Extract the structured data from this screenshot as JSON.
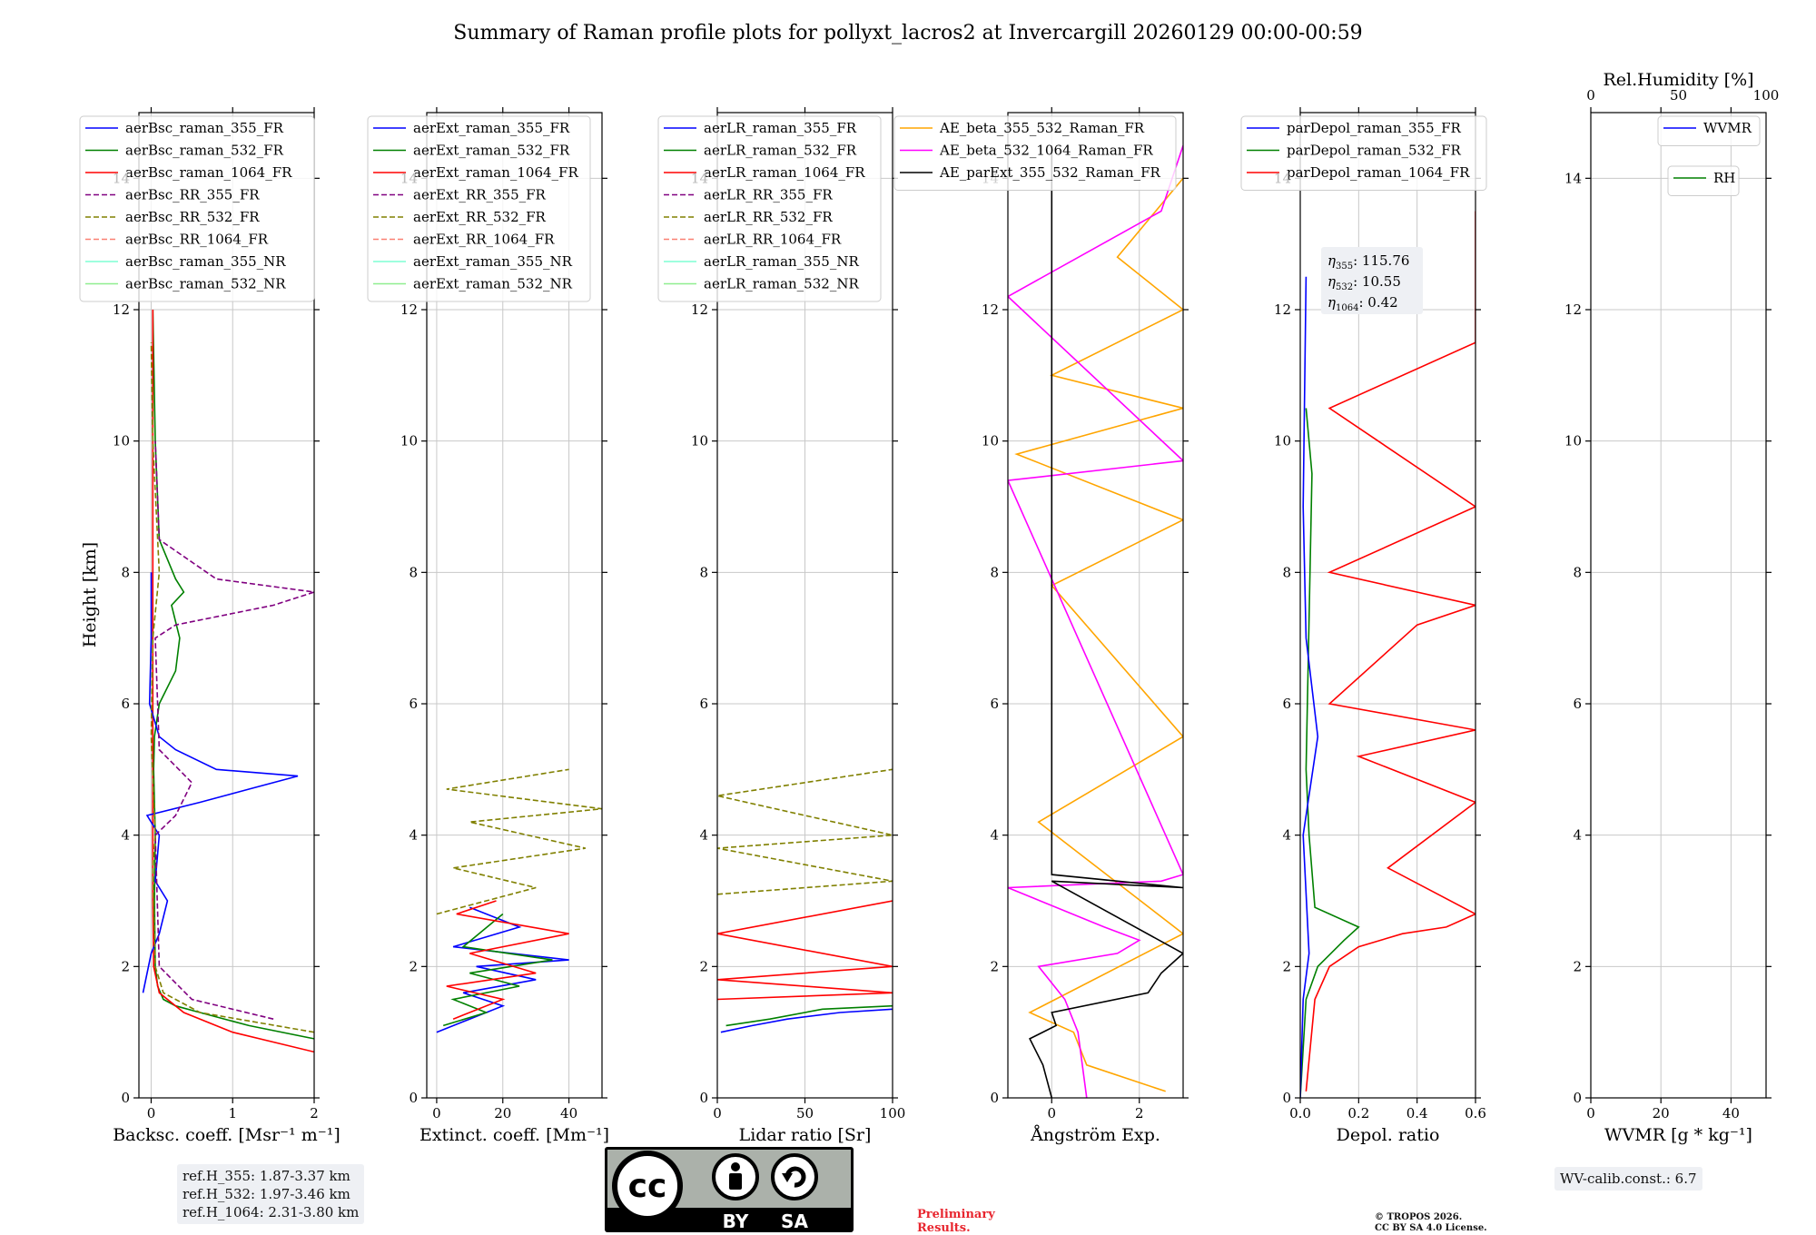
{
  "title": "Summary of Raman profile plots for pollyxt_lacros2 at Invercargill 20260129 00:00-00:59",
  "ylabel": "Height [km]",
  "yticks": [
    "0",
    "2",
    "4",
    "6",
    "8",
    "10",
    "12",
    "14"
  ],
  "y_hidden_tick": "14",
  "panels": [
    {
      "id": "bsc",
      "xlabel": "Backsc. coeff. [Msr⁻¹ m⁻¹]",
      "xlim": [
        -0.15,
        2.0
      ],
      "xticks": [
        {
          "v": 0,
          "t": "0"
        },
        {
          "v": 1,
          "t": "1"
        },
        {
          "v": 2,
          "t": "2"
        }
      ],
      "legend": [
        {
          "label": "aerBsc_raman_355_FR",
          "color": "#0000ff",
          "dash": "none"
        },
        {
          "label": "aerBsc_raman_532_FR",
          "color": "#008000",
          "dash": "none"
        },
        {
          "label": "aerBsc_raman_1064_FR",
          "color": "#ff0000",
          "dash": "none"
        },
        {
          "label": "aerBsc_RR_355_FR",
          "color": "#800080",
          "dash": "6,3"
        },
        {
          "label": "aerBsc_RR_532_FR",
          "color": "#808000",
          "dash": "6,3"
        },
        {
          "label": "aerBsc_RR_1064_FR",
          "color": "#fa8072",
          "dash": "6,3"
        },
        {
          "label": "aerBsc_raman_355_NR",
          "color": "#7fffd4",
          "dash": "none"
        },
        {
          "label": "aerBsc_raman_532_NR",
          "color": "#90ee90",
          "dash": "none"
        }
      ]
    },
    {
      "id": "ext",
      "xlabel": "Extinct. coeff. [Mm⁻¹]",
      "xlim": [
        -3,
        50
      ],
      "xticks": [
        {
          "v": 0,
          "t": "0"
        },
        {
          "v": 20,
          "t": "20"
        },
        {
          "v": 40,
          "t": "40"
        }
      ],
      "legend": [
        {
          "label": "aerExt_raman_355_FR",
          "color": "#0000ff",
          "dash": "none"
        },
        {
          "label": "aerExt_raman_532_FR",
          "color": "#008000",
          "dash": "none"
        },
        {
          "label": "aerExt_raman_1064_FR",
          "color": "#ff0000",
          "dash": "none"
        },
        {
          "label": "aerExt_RR_355_FR",
          "color": "#800080",
          "dash": "6,3"
        },
        {
          "label": "aerExt_RR_532_FR",
          "color": "#808000",
          "dash": "6,3"
        },
        {
          "label": "aerExt_RR_1064_FR",
          "color": "#fa8072",
          "dash": "6,3"
        },
        {
          "label": "aerExt_raman_355_NR",
          "color": "#7fffd4",
          "dash": "none"
        },
        {
          "label": "aerExt_raman_532_NR",
          "color": "#90ee90",
          "dash": "none"
        }
      ]
    },
    {
      "id": "lr",
      "xlabel": "Lidar ratio [Sr]",
      "xlim": [
        0,
        100
      ],
      "xticks": [
        {
          "v": 0,
          "t": "0"
        },
        {
          "v": 50,
          "t": "50"
        },
        {
          "v": 100,
          "t": "100"
        }
      ],
      "legend": [
        {
          "label": "aerLR_raman_355_FR",
          "color": "#0000ff",
          "dash": "none"
        },
        {
          "label": "aerLR_raman_532_FR",
          "color": "#008000",
          "dash": "none"
        },
        {
          "label": "aerLR_raman_1064_FR",
          "color": "#ff0000",
          "dash": "none"
        },
        {
          "label": "aerLR_RR_355_FR",
          "color": "#800080",
          "dash": "6,3"
        },
        {
          "label": "aerLR_RR_532_FR",
          "color": "#808000",
          "dash": "6,3"
        },
        {
          "label": "aerLR_RR_1064_FR",
          "color": "#fa8072",
          "dash": "6,3"
        },
        {
          "label": "aerLR_raman_355_NR",
          "color": "#7fffd4",
          "dash": "none"
        },
        {
          "label": "aerLR_raman_532_NR",
          "color": "#90ee90",
          "dash": "none"
        }
      ]
    },
    {
      "id": "ae",
      "xlabel": "Ångström Exp.",
      "xlim": [
        -1,
        3
      ],
      "xticks": [
        {
          "v": 0,
          "t": "0"
        },
        {
          "v": 2,
          "t": "2"
        }
      ],
      "legend": [
        {
          "label": "AE_beta_355_532_Raman_FR",
          "color": "#ffa500",
          "dash": "none"
        },
        {
          "label": "AE_beta_532_1064_Raman_FR",
          "color": "#ff00ff",
          "dash": "none"
        },
        {
          "label": "AE_parExt_355_532_Raman_FR",
          "color": "#000000",
          "dash": "none"
        }
      ]
    },
    {
      "id": "dep",
      "xlabel": "Depol. ratio",
      "xlim": [
        0,
        0.6
      ],
      "xticks": [
        {
          "v": 0,
          "t": "0.0"
        },
        {
          "v": 0.2,
          "t": "0.2"
        },
        {
          "v": 0.4,
          "t": "0.4"
        },
        {
          "v": 0.6,
          "t": "0.6"
        }
      ],
      "legend": [
        {
          "label": "parDepol_raman_355_FR",
          "color": "#0000ff",
          "dash": "none"
        },
        {
          "label": "parDepol_raman_532_FR",
          "color": "#008000",
          "dash": "none"
        },
        {
          "label": "parDepol_raman_1064_FR",
          "color": "#ff0000",
          "dash": "none"
        }
      ],
      "eta": [
        {
          "sub": "355",
          "value": "115.76"
        },
        {
          "sub": "532",
          "value": "10.55"
        },
        {
          "sub": "1064",
          "value": "0.42"
        }
      ]
    },
    {
      "id": "wv",
      "xlabel": "WVMR [g * kg⁻¹]",
      "xlim": [
        0,
        50
      ],
      "xticks": [
        {
          "v": 0,
          "t": "0"
        },
        {
          "v": 20,
          "t": "20"
        },
        {
          "v": 40,
          "t": "40"
        }
      ],
      "toplabel": "Rel.Humidity [%]",
      "topticks": [
        {
          "v": 0,
          "t": "0"
        },
        {
          "v": 25,
          "t": "50"
        },
        {
          "v": 50,
          "t": "100"
        }
      ],
      "legend": [
        {
          "label": "WVMR",
          "color": "#0000ff",
          "dash": "none"
        }
      ],
      "legend2": [
        {
          "label": "RH",
          "color": "#008000",
          "dash": "none"
        }
      ]
    }
  ],
  "info": {
    "ref_h": [
      "ref.H_355: 1.87-3.37 km",
      "ref.H_532: 1.97-3.46 km",
      "ref.H_1064: 2.31-3.80 km"
    ],
    "wv_calib": "WV-calib.const.: 6.7",
    "preliminary": [
      "Preliminary",
      "Results."
    ],
    "copyright": [
      "© TROPOS 2026.",
      "CC BY SA 4.0 License."
    ],
    "cc_labels": [
      "BY",
      "SA"
    ],
    "cc_text": "cc"
  },
  "colors": {
    "blue": "#0000ff",
    "green": "#008000",
    "red": "#ff0000",
    "purple": "#800080",
    "olive": "#808000",
    "salmon": "#fa8072",
    "aqua": "#7fffd4",
    "lightgreen": "#90ee90",
    "orange": "#ffa500",
    "magenta": "#ff00ff",
    "black": "#000000"
  },
  "chart_data": [
    {
      "type": "line",
      "panel": "bsc",
      "title": "",
      "xlabel": "Backsc. coeff. [Msr⁻¹ m⁻¹]",
      "ylabel": "Height [km]",
      "xlim": [
        -0.15,
        2.0
      ],
      "ylim": [
        0,
        15
      ],
      "series": [
        {
          "name": "aerBsc_raman_532_FR",
          "color": "#008000",
          "dash": "none",
          "x": [
            2.0,
            1.2,
            0.6,
            0.3,
            0.15,
            0.08,
            0.05,
            0.04,
            0.05,
            0.03,
            0.04,
            0.1,
            0.3,
            0.35,
            0.25,
            0.4,
            0.3,
            0.1,
            0.05,
            0.02
          ],
          "y": [
            0.9,
            1.1,
            1.3,
            1.4,
            1.5,
            1.7,
            2.0,
            3.0,
            4.0,
            5.0,
            5.5,
            6.0,
            6.5,
            7.0,
            7.5,
            7.7,
            7.9,
            8.5,
            10.0,
            12.0
          ]
        },
        {
          "name": "aerBsc_raman_1064_FR",
          "color": "#ff0000",
          "dash": "none",
          "x": [
            2.0,
            1.0,
            0.4,
            0.1,
            0.03,
            0.02,
            0.02,
            0.02,
            0.02,
            0.02,
            0.02
          ],
          "y": [
            0.7,
            1.0,
            1.3,
            1.6,
            2.0,
            3.0,
            5.0,
            7.0,
            8.0,
            10.0,
            12.0
          ]
        },
        {
          "name": "aerBsc_raman_355_FR",
          "color": "#0000ff",
          "dash": "none",
          "x": [
            -0.1,
            0.0,
            0.1,
            0.2,
            0.05,
            0.1,
            -0.05,
            0.6,
            1.2,
            1.8,
            0.8,
            0.3,
            0.1,
            -0.02,
            0.0,
            0.0
          ],
          "y": [
            1.6,
            2.2,
            2.5,
            3.0,
            3.3,
            4.0,
            4.3,
            4.5,
            4.7,
            4.9,
            5.0,
            5.3,
            5.5,
            6.0,
            7.0,
            8.0
          ]
        },
        {
          "name": "aerBsc_RR_355_FR",
          "color": "#800080",
          "dash": "6,3",
          "x": [
            1.5,
            0.5,
            0.1,
            0.05,
            0.3,
            0.5,
            0.1,
            0.05,
            0.3,
            1.5,
            2.0,
            0.8,
            0.1,
            0.05
          ],
          "y": [
            1.2,
            1.5,
            2.0,
            4.0,
            4.3,
            4.8,
            5.3,
            7.0,
            7.2,
            7.5,
            7.7,
            7.9,
            8.5,
            10.0
          ]
        },
        {
          "name": "aerBsc_RR_532_FR",
          "color": "#808000",
          "dash": "6,3",
          "x": [
            2.0,
            0.6,
            0.15,
            0.05,
            0.02,
            0.05,
            0.0,
            0.02,
            0.1,
            0.02,
            0.0
          ],
          "y": [
            1.0,
            1.3,
            1.6,
            2.0,
            3.5,
            4.0,
            5.5,
            7.0,
            8.0,
            10.0,
            11.5
          ]
        }
      ]
    },
    {
      "type": "line",
      "panel": "ext",
      "title": "",
      "xlabel": "Extinct. coeff. [Mm⁻¹]",
      "ylabel": "Height [km]",
      "xlim": [
        -3,
        50
      ],
      "ylim": [
        0,
        15
      ],
      "series": [
        {
          "name": "aerExt_raman_355_FR",
          "color": "#0000ff",
          "dash": "none",
          "x": [
            0,
            10,
            20,
            8,
            30,
            12,
            40,
            5,
            25,
            10
          ],
          "y": [
            1.0,
            1.2,
            1.4,
            1.6,
            1.8,
            2.0,
            2.1,
            2.3,
            2.6,
            2.9
          ]
        },
        {
          "name": "aerExt_raman_532_FR",
          "color": "#008000",
          "dash": "none",
          "x": [
            2,
            15,
            5,
            25,
            10,
            35,
            8,
            20
          ],
          "y": [
            1.1,
            1.3,
            1.5,
            1.7,
            1.9,
            2.1,
            2.3,
            2.8
          ]
        },
        {
          "name": "aerExt_raman_1064_FR",
          "color": "#ff0000",
          "dash": "none",
          "x": [
            5,
            20,
            3,
            30,
            10,
            40,
            6,
            18
          ],
          "y": [
            1.2,
            1.5,
            1.7,
            1.9,
            2.2,
            2.5,
            2.8,
            3.0
          ]
        },
        {
          "name": "aerExt_RR_532_FR",
          "color": "#808000",
          "dash": "6,3",
          "x": [
            0,
            30,
            5,
            45,
            10,
            50,
            3,
            40
          ],
          "y": [
            2.8,
            3.2,
            3.5,
            3.8,
            4.2,
            4.4,
            4.7,
            5.0
          ]
        }
      ]
    },
    {
      "type": "line",
      "panel": "lr",
      "title": "",
      "xlabel": "Lidar ratio [Sr]",
      "ylabel": "Height [km]",
      "xlim": [
        0,
        100
      ],
      "ylim": [
        0,
        15
      ],
      "series": [
        {
          "name": "aerLR_raman_355_FR",
          "color": "#0000ff",
          "dash": "none",
          "x": [
            2,
            20,
            40,
            70,
            100
          ],
          "y": [
            1.0,
            1.1,
            1.2,
            1.3,
            1.35
          ]
        },
        {
          "name": "aerLR_raman_532_FR",
          "color": "#008000",
          "dash": "none",
          "x": [
            5,
            30,
            60,
            100
          ],
          "y": [
            1.1,
            1.2,
            1.35,
            1.4
          ]
        },
        {
          "name": "aerLR_raman_1064_FR",
          "color": "#ff0000",
          "dash": "none",
          "x": [
            0,
            100,
            0,
            100,
            0,
            100
          ],
          "y": [
            1.5,
            1.6,
            1.8,
            2.0,
            2.5,
            3.0
          ]
        },
        {
          "name": "aerLR_RR_532_FR",
          "color": "#808000",
          "dash": "6,3",
          "x": [
            0,
            100,
            0,
            100,
            0,
            100
          ],
          "y": [
            3.1,
            3.3,
            3.8,
            4.0,
            4.6,
            5.0
          ]
        }
      ]
    },
    {
      "type": "line",
      "panel": "ae",
      "title": "",
      "xlabel": "Ångström Exp.",
      "ylabel": "Height [km]",
      "xlim": [
        -1,
        3
      ],
      "ylim": [
        0,
        15
      ],
      "series": [
        {
          "name": "AE_beta_355_532_Raman_FR",
          "color": "#ffa500",
          "dash": "none",
          "x": [
            2.6,
            0.8,
            0.5,
            -0.5,
            3.0,
            -0.3,
            3.0,
            0.0,
            3.0,
            -0.8,
            3.0,
            0.0,
            3.0,
            1.5,
            3.0
          ],
          "y": [
            0.1,
            0.5,
            1.0,
            1.3,
            2.5,
            4.2,
            5.5,
            7.8,
            8.8,
            9.8,
            10.5,
            11.0,
            12.0,
            12.8,
            14.0
          ]
        },
        {
          "name": "AE_beta_532_1064_Raman_FR",
          "color": "#ff00ff",
          "dash": "none",
          "x": [
            0.8,
            0.6,
            0.3,
            -0.3,
            1.5,
            2.0,
            1.2,
            -1.0,
            2.5,
            3.0,
            -1.0,
            3.0,
            -1.0,
            2.5,
            3.0
          ],
          "y": [
            0.0,
            1.0,
            1.5,
            2.0,
            2.2,
            2.4,
            2.6,
            3.2,
            3.3,
            3.4,
            9.4,
            9.7,
            12.2,
            13.5,
            14.5
          ]
        },
        {
          "name": "AE_parExt_355_532_Raman_FR",
          "color": "#000000",
          "dash": "none",
          "x": [
            0.0,
            -0.2,
            -0.5,
            0.1,
            0.0,
            2.2,
            2.5,
            3.0,
            0.0,
            3.0,
            0.0,
            0.0
          ],
          "y": [
            0.0,
            0.5,
            0.9,
            1.1,
            1.3,
            1.6,
            1.9,
            2.2,
            3.3,
            3.2,
            3.4,
            14.5
          ]
        }
      ]
    },
    {
      "type": "line",
      "panel": "dep",
      "title": "",
      "xlabel": "Depol. ratio",
      "ylabel": "Height [km]",
      "xlim": [
        0,
        0.6
      ],
      "ylim": [
        0,
        15
      ],
      "series": [
        {
          "name": "parDepol_raman_1064_FR",
          "color": "#ff0000",
          "dash": "none",
          "x": [
            0.02,
            0.05,
            0.1,
            0.2,
            0.35,
            0.5,
            0.6,
            0.3,
            0.6,
            0.2,
            0.6,
            0.1,
            0.4,
            0.6,
            0.1,
            0.6,
            0.1,
            0.6,
            0.6
          ],
          "y": [
            0.1,
            1.5,
            2.0,
            2.3,
            2.5,
            2.6,
            2.8,
            3.5,
            4.5,
            5.2,
            5.6,
            6.0,
            7.2,
            7.5,
            8.0,
            9.0,
            10.5,
            11.5,
            13.5
          ]
        },
        {
          "name": "parDepol_raman_532_FR",
          "color": "#008000",
          "dash": "none",
          "x": [
            0.0,
            0.02,
            0.06,
            0.15,
            0.2,
            0.05,
            0.03,
            0.02,
            0.04,
            0.02
          ],
          "y": [
            0.0,
            1.5,
            2.0,
            2.4,
            2.6,
            2.9,
            4.0,
            5.0,
            9.5,
            10.5
          ]
        },
        {
          "name": "parDepol_raman_355_FR",
          "color": "#0000ff",
          "dash": "none",
          "x": [
            0.0,
            0.01,
            0.03,
            0.01,
            0.06,
            0.02,
            0.01,
            0.02
          ],
          "y": [
            0.0,
            1.5,
            2.2,
            4.0,
            5.5,
            7.0,
            9.0,
            12.5
          ]
        }
      ]
    },
    {
      "type": "line",
      "panel": "wv",
      "title": "",
      "xlabel": "WVMR [g * kg⁻¹]",
      "ylabel": "Height [km]",
      "xlim": [
        0,
        50
      ],
      "ylim": [
        0,
        15
      ],
      "series": [
        {
          "name": "WVMR",
          "color": "#0000ff",
          "x": [],
          "y": []
        },
        {
          "name": "RH",
          "color": "#008000",
          "x": [],
          "y": []
        }
      ]
    }
  ]
}
